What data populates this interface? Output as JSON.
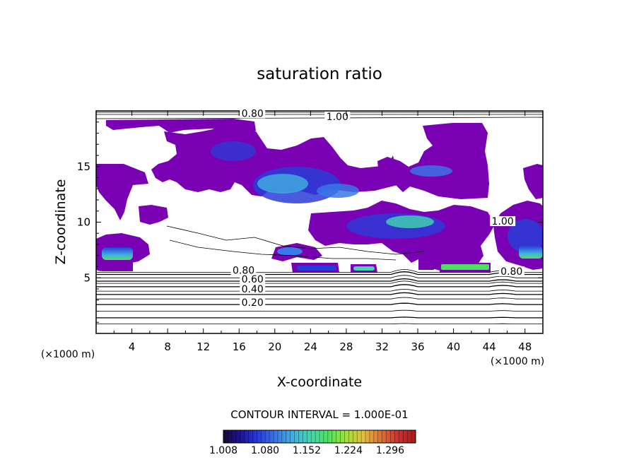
{
  "chart_data": {
    "type": "heatmap",
    "title": "saturation ratio",
    "xlabel": "X-coordinate",
    "ylabel": "Z-coordinate",
    "x_unit_label": "(×1000 m)",
    "y_unit_label": "(×1000 m)",
    "xlim": [
      0,
      50
    ],
    "ylim": [
      0,
      20
    ],
    "x_ticks": [
      4,
      8,
      12,
      16,
      20,
      24,
      28,
      32,
      36,
      40,
      44,
      48
    ],
    "y_ticks": [
      5,
      10,
      15
    ],
    "contour_interval_text": "CONTOUR INTERVAL = 1.000E-01",
    "contour_labels": [
      {
        "text": "0.20",
        "x": 17.5,
        "z": 2.6
      },
      {
        "text": "0.40",
        "x": 17.5,
        "z": 3.8
      },
      {
        "text": "0.60",
        "x": 17.5,
        "z": 4.7
      },
      {
        "text": "0.80",
        "x": 16.5,
        "z": 5.5
      },
      {
        "text": "0.80",
        "x": 46.5,
        "z": 5.4
      },
      {
        "text": "1.00",
        "x": 45.5,
        "z": 9.9
      },
      {
        "text": "0.80",
        "x": 17.5,
        "z": 19.6
      },
      {
        "text": "1.00",
        "x": 27.0,
        "z": 19.3
      }
    ],
    "contour_levels_z": [
      0.85,
      1.4,
      2.0,
      2.6,
      3.1,
      3.5,
      3.8,
      4.2,
      4.5,
      4.7,
      5.0,
      5.3,
      5.5
    ],
    "colorbar": {
      "min": 1.008,
      "max": 1.34,
      "tick_labels": [
        "1.008",
        "1.080",
        "1.152",
        "1.224",
        "1.296"
      ],
      "colors": [
        "#1a0a3a",
        "#1e1490",
        "#2a3cd8",
        "#3a78e8",
        "#40b0e0",
        "#40d8b0",
        "#50e060",
        "#a0e040",
        "#e0c040",
        "#e07030",
        "#d03030",
        "#b01818"
      ]
    },
    "cloud_color": "#7a00b4"
  }
}
